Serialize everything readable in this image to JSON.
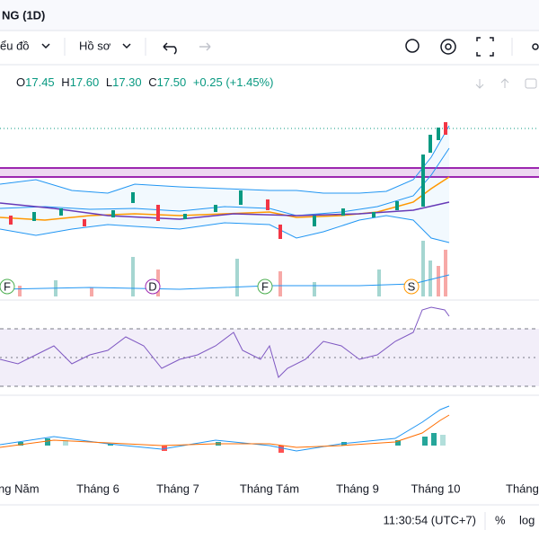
{
  "header": {
    "title": "NG (1D)"
  },
  "toolbar": {
    "chart_menu": "ểu đồ",
    "profile_menu": "Hồ sơ"
  },
  "legend": {
    "open_label": "O",
    "open": "17.45",
    "high_label": "H",
    "high": "17.60",
    "low_label": "L",
    "low": "17.30",
    "close_label": "C",
    "close": "17.50",
    "change": "+0.25 (+1.45%)"
  },
  "event_markers": [
    "F",
    "D",
    "F",
    "S"
  ],
  "time_axis": [
    "ng Năm",
    "Tháng 6",
    "Tháng 7",
    "Tháng Tám",
    "Tháng 9",
    "Tháng 10",
    "Tháng"
  ],
  "footer": {
    "clock": "11:30:54 (UTC+7)",
    "percent": "%",
    "log": "log"
  }
}
